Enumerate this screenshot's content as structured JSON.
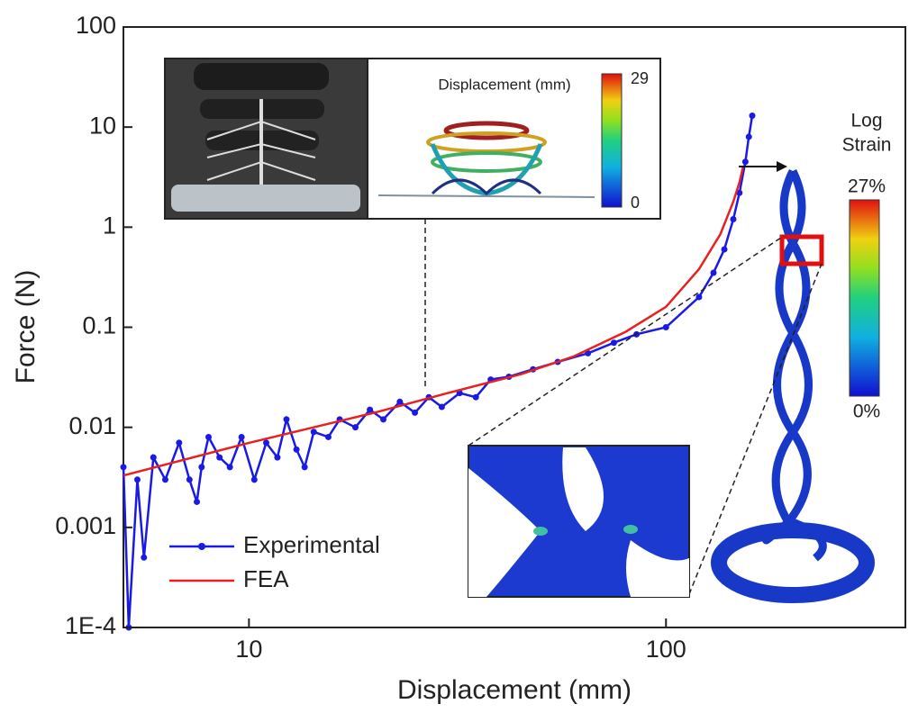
{
  "chart_data": {
    "type": "line",
    "xlabel": "Displacement (mm)",
    "ylabel": "Force (N)",
    "xscale": "log",
    "yscale": "log",
    "xlim": [
      5,
      375
    ],
    "ylim": [
      0.0001,
      100
    ],
    "xticks": [
      10,
      100
    ],
    "yticks": [
      100,
      10,
      1,
      0.1,
      0.01,
      0.001,
      {
        "value": 0.0001,
        "label": "1E-4"
      }
    ],
    "legend": "lower left",
    "series": [
      {
        "name": "Experimental",
        "color": "#1a1ae6",
        "marker": true,
        "x": [
          5.0,
          5.15,
          5.4,
          5.6,
          5.9,
          6.3,
          6.8,
          7.2,
          7.5,
          7.7,
          8.0,
          8.5,
          9.0,
          9.6,
          10.3,
          11.0,
          11.7,
          12.3,
          13.0,
          13.6,
          14.3,
          15.5,
          16.5,
          18,
          19.5,
          21,
          23,
          25,
          27,
          29,
          32,
          35,
          38,
          42,
          48,
          55,
          65,
          75,
          85,
          100,
          120,
          130,
          138,
          145,
          150,
          155,
          158,
          161
        ],
        "values": [
          0.004,
          0.0001,
          0.003,
          0.0005,
          0.005,
          0.003,
          0.007,
          0.003,
          0.0018,
          0.004,
          0.008,
          0.005,
          0.004,
          0.008,
          0.003,
          0.007,
          0.005,
          0.012,
          0.006,
          0.004,
          0.009,
          0.008,
          0.012,
          0.01,
          0.015,
          0.012,
          0.018,
          0.014,
          0.02,
          0.016,
          0.022,
          0.02,
          0.03,
          0.032,
          0.038,
          0.045,
          0.055,
          0.07,
          0.085,
          0.1,
          0.2,
          0.35,
          0.6,
          1.2,
          2.2,
          4.5,
          8,
          13
        ]
      },
      {
        "name": "FEA",
        "color": "#e82020",
        "marker": false,
        "x": [
          5,
          10,
          20,
          30,
          45,
          60,
          80,
          100,
          120,
          135,
          145,
          150,
          153
        ],
        "values": [
          0.0033,
          0.007,
          0.014,
          0.022,
          0.034,
          0.051,
          0.09,
          0.16,
          0.38,
          0.85,
          1.8,
          2.8,
          4
        ]
      }
    ],
    "insets": {
      "fea_title": "Displacement (mm)",
      "fea_max": "29",
      "fea_min": "0",
      "strain_title_lines": [
        "Log",
        "Strain"
      ],
      "strain_max": "27%",
      "strain_min": "0%"
    }
  }
}
